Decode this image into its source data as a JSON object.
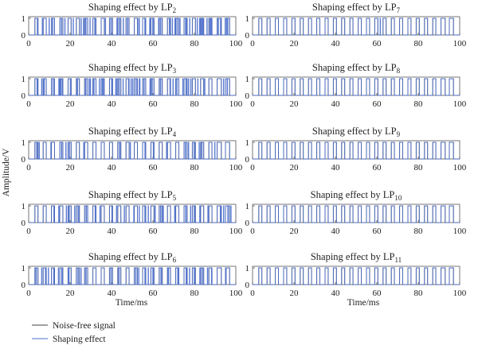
{
  "chart_data": {
    "type": "line",
    "ylabel": "Amplitude/V",
    "xlabel": "Time/ms",
    "xlim": [
      0,
      100
    ],
    "ylim": [
      0,
      1
    ],
    "x_ticks": [
      0,
      20,
      40,
      60,
      80,
      100
    ],
    "y_ticks": [
      0,
      1
    ],
    "colors": {
      "noise_free": "#404040",
      "shaping": "#4a6fd0"
    },
    "legend": {
      "placement": "bottom-left",
      "entries": [
        {
          "name": "Noise-free signal",
          "color": "#404040"
        },
        {
          "name": "Shaping effect",
          "color": "#4a6fd0"
        }
      ]
    },
    "noise_free_signal": {
      "description_units": "ms",
      "pulse_high_intervals": [
        [
          3,
          4.5
        ],
        [
          7,
          8.5
        ],
        [
          11,
          12.5
        ],
        [
          15,
          16.5
        ],
        [
          19,
          20.5
        ],
        [
          23,
          24.5
        ],
        [
          27,
          28.5
        ],
        [
          31,
          32.5
        ],
        [
          35,
          36.5
        ],
        [
          39,
          40.5
        ],
        [
          43,
          44.5
        ],
        [
          47,
          48.5
        ],
        [
          51,
          52.5
        ],
        [
          55,
          56.5
        ],
        [
          59,
          60.5
        ],
        [
          63,
          64.5
        ],
        [
          67,
          68.5
        ],
        [
          71,
          72.5
        ],
        [
          75,
          76.5
        ],
        [
          79,
          80.5
        ],
        [
          83,
          84.5
        ],
        [
          87,
          88.5
        ],
        [
          91,
          93
        ],
        [
          95,
          97
        ]
      ]
    },
    "panels": [
      {
        "title_main": "Shaping effect by LP",
        "title_sub": "2",
        "distortion": 1.0
      },
      {
        "title_main": "Shaping effect by LP",
        "title_sub": "7",
        "distortion": 0.25
      },
      {
        "title_main": "Shaping effect by LP",
        "title_sub": "3",
        "distortion": 0.85
      },
      {
        "title_main": "Shaping effect by LP",
        "title_sub": "8",
        "distortion": 0.08
      },
      {
        "title_main": "Shaping effect by LP",
        "title_sub": "4",
        "distortion": 0.45
      },
      {
        "title_main": "Shaping effect by LP",
        "title_sub": "9",
        "distortion": 0.05
      },
      {
        "title_main": "Shaping effect by LP",
        "title_sub": "5",
        "distortion": 0.55
      },
      {
        "title_main": "Shaping effect by LP",
        "title_sub": "10",
        "distortion": 0.04
      },
      {
        "title_main": "Shaping effect by LP",
        "title_sub": "6",
        "distortion": 0.7
      },
      {
        "title_main": "Shaping effect by LP",
        "title_sub": "11",
        "distortion": 0.03
      }
    ]
  }
}
